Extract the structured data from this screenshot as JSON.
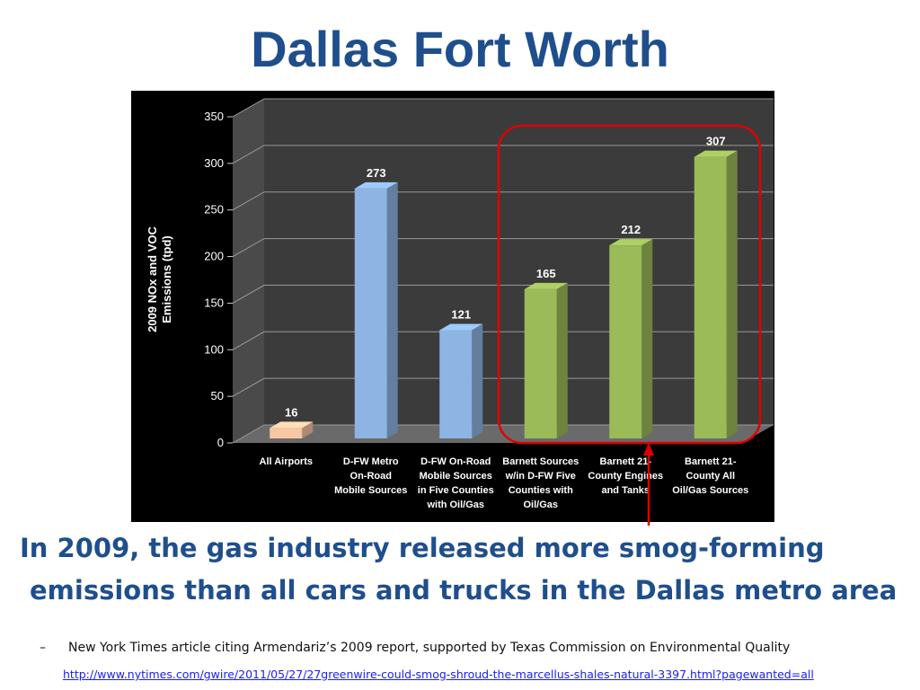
{
  "slide": {
    "title": "Dallas Fort Worth",
    "caption_line1": "In 2009, the gas industry released more smog-forming",
    "caption_line2": "emissions than all cars and trucks in the Dallas metro area",
    "source_dash": "–",
    "source_text": "New York Times article citing Armendariz’s 2009 report, supported by Texas Commission on Environmental Quality",
    "source_link": "http://www.nytimes.com/gwire/2011/05/27/27greenwire-could-smog-shroud-the-marcellus-shales-natural-3397.html?pagewanted=all"
  },
  "colors": {
    "title": "#1F4E8C",
    "airports_bar": "#F7C6A3",
    "mobile_bar": "#8DB4E2",
    "barnett_bar": "#9BBB59",
    "highlight": "#E00000",
    "panel_background": "#000000"
  },
  "chart_data": {
    "type": "bar",
    "categories": [
      [
        "All Airports"
      ],
      [
        "D-FW Metro",
        "On-Road",
        "Mobile Sources"
      ],
      [
        "D-FW On-Road",
        "Mobile Sources",
        "in Five Counties",
        "with Oil/Gas"
      ],
      [
        "Barnett Sources",
        "w/in D-FW Five",
        "Counties with",
        "Oil/Gas"
      ],
      [
        "Barnett 21-",
        "County Engines",
        "and Tanks"
      ],
      [
        "Barnett 21-",
        "County All",
        "Oil/Gas Sources"
      ]
    ],
    "values": [
      16,
      273,
      121,
      165,
      212,
      307
    ],
    "bar_colors": [
      "#F7C6A3",
      "#8DB4E2",
      "#8DB4E2",
      "#9BBB59",
      "#9BBB59",
      "#9BBB59"
    ],
    "ylabel": [
      "2009 NOx and VOC",
      "Emissions  (tpd)"
    ],
    "xlabel": "",
    "ylim": [
      0,
      350
    ],
    "yticks": [
      0,
      50,
      100,
      150,
      200,
      250,
      300,
      350
    ],
    "grid": true,
    "legend": "none",
    "style": "3d-columns",
    "highlighted_categories": [
      3,
      4,
      5
    ]
  }
}
